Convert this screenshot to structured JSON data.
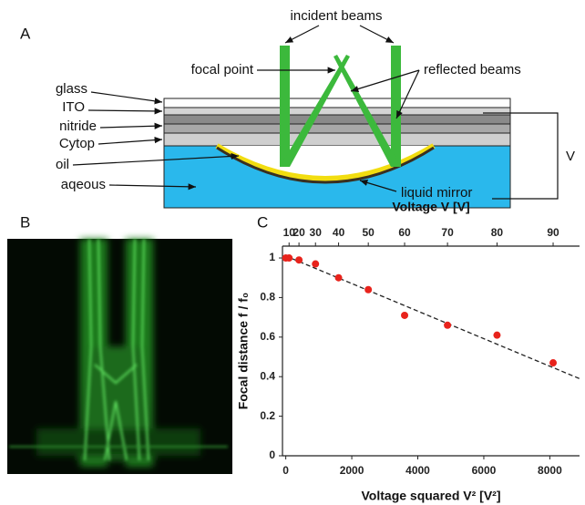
{
  "panel_a": {
    "letter": "A",
    "incident_beams": "incident beams",
    "focal_point": "focal point",
    "reflected_beams": "reflected beams",
    "glass": "glass",
    "ito": "ITO",
    "nitride": "nitride",
    "cytop": "Cytop",
    "oil": "oil",
    "aqueous": "aqeous",
    "liquid_mirror": "liquid mirror",
    "voltage": "V"
  },
  "panel_b": {
    "letter": "B"
  },
  "chart_data": {
    "type": "scatter",
    "panel_letter": "C",
    "x_label": "Voltage squared V² [V²]",
    "y_label": "Focal distance f / f₀",
    "x2_label": "Voltage V [V]",
    "x": [
      0,
      100,
      400,
      900,
      1600,
      2500,
      3600,
      4900,
      6400,
      8100
    ],
    "values": [
      1.0,
      1.0,
      0.99,
      0.97,
      0.9,
      0.84,
      0.71,
      0.66,
      0.61,
      0.47
    ],
    "color": "#e8231c",
    "trend_line": {
      "x": [
        0,
        8900
      ],
      "values": [
        1.01,
        0.39
      ],
      "color": "#222222"
    },
    "xlim": [
      -100,
      8900
    ],
    "xticks": [
      0,
      2000,
      4000,
      6000,
      8000
    ],
    "ylim": [
      0,
      1.06
    ],
    "yticks": [
      0,
      0.2,
      0.4,
      0.6,
      0.8,
      1
    ],
    "x2_transform": "square",
    "x2ticks": [
      10,
      20,
      30,
      40,
      50,
      60,
      70,
      80,
      90
    ]
  }
}
